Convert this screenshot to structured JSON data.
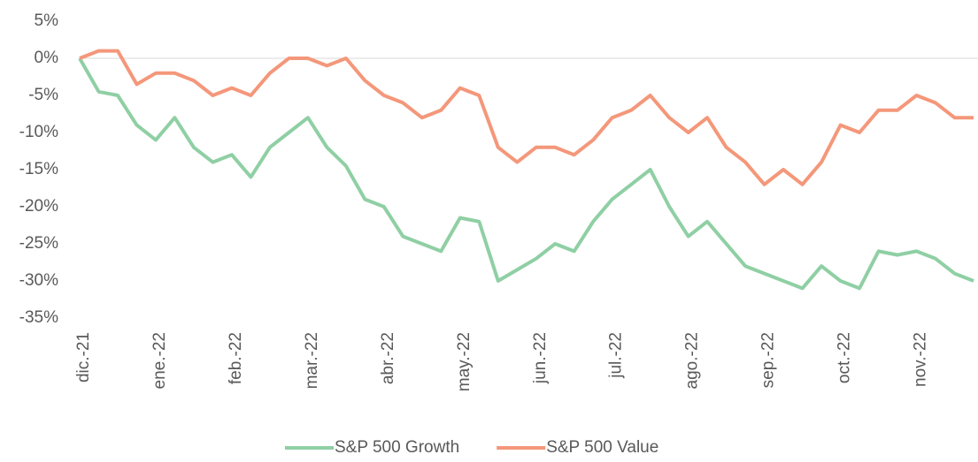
{
  "chart_data": {
    "type": "line",
    "categories": [
      "dic.-21",
      null,
      null,
      null,
      "ene.-22",
      null,
      null,
      null,
      "feb.-22",
      null,
      null,
      null,
      "mar.-22",
      null,
      null,
      null,
      "abr.-22",
      null,
      null,
      null,
      "may.-22",
      null,
      null,
      null,
      "jun.-22",
      null,
      null,
      null,
      "jul.-22",
      null,
      null,
      null,
      "ago.-22",
      null,
      null,
      null,
      "sep.-22",
      null,
      null,
      null,
      "oct.-22",
      null,
      null,
      null,
      "nov.-22",
      null,
      null,
      null
    ],
    "series": [
      {
        "name": "S&P 500 Growth",
        "color": "#8fcfa4",
        "values": [
          0,
          -4.5,
          -5,
          -9,
          -11,
          -8,
          -12,
          -14,
          -13,
          -16,
          -12,
          -10,
          -8,
          -12,
          -14.5,
          -19,
          -20,
          -24,
          -25,
          -26,
          -21.5,
          -22,
          -30,
          -28.5,
          -27,
          -25,
          -26,
          -22,
          -19,
          -17,
          -15,
          -20,
          -24,
          -22,
          -25,
          -28,
          -29,
          -30,
          -31,
          -28,
          -30,
          -31,
          -26,
          -26.5,
          -26,
          -27,
          -29,
          -30
        ]
      },
      {
        "name": "S&P 500 Value",
        "color": "#f4977a",
        "values": [
          0,
          1,
          1,
          -3.5,
          -2,
          -2,
          -3,
          -5,
          -4,
          -5,
          -2,
          0,
          0,
          -1,
          0,
          -3,
          -5,
          -6,
          -8,
          -7,
          -4,
          -5,
          -12,
          -14,
          -12,
          -12,
          -13,
          -11,
          -8,
          -7,
          -5,
          -8,
          -10,
          -8,
          -12,
          -14,
          -17,
          -15,
          -17,
          -14,
          -9,
          -10,
          -7,
          -7,
          -5,
          -6,
          -8,
          -8
        ]
      }
    ],
    "ylim": [
      -35,
      5
    ],
    "yticks": [
      {
        "value": 5,
        "label": "5%"
      },
      {
        "value": 0,
        "label": "0%"
      },
      {
        "value": -5,
        "label": "-5%"
      },
      {
        "value": -10,
        "label": "-10%"
      },
      {
        "value": -15,
        "label": "-15%"
      },
      {
        "value": -20,
        "label": "-20%"
      },
      {
        "value": -25,
        "label": "-25%"
      },
      {
        "value": -30,
        "label": "-30%"
      },
      {
        "value": -35,
        "label": "-35%"
      }
    ],
    "legend": "bottom"
  }
}
